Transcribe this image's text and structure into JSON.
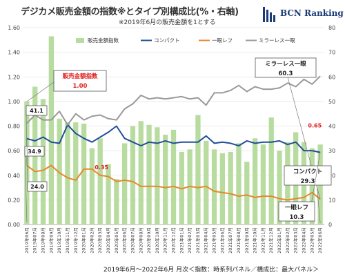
{
  "header": {
    "title": "デジカメ販売金額の指数※とタイプ別構成比(%・右軸)",
    "note": "※2019年6月の販売金額を1とする",
    "logo": "BCN Ranking"
  },
  "footer": "2019年6月～2022年6月 月次＜指数：時系列パネル／構成比：最大パネル＞",
  "colors": {
    "bar": "#b8dca0",
    "compact": "#1f4e96",
    "dslr": "#e8872b",
    "mirrorless": "#999999",
    "highlight": "#e02020"
  },
  "chart_data": {
    "type": "bar+line",
    "categories": [
      "2019年06月",
      "2019年07月",
      "2019年08月",
      "2019年09月",
      "2019年10月",
      "2019年11月",
      "2019年12月",
      "2020年01月",
      "2020年02月",
      "2020年03月",
      "2020年04月",
      "2020年05月",
      "2020年06月",
      "2020年07月",
      "2020年08月",
      "2020年09月",
      "2020年10月",
      "2020年11月",
      "2020年12月",
      "2021年01月",
      "2021年02月",
      "2021年03月",
      "2021年04月",
      "2021年05月",
      "2021年06月",
      "2021年07月",
      "2021年08月",
      "2021年09月",
      "2021年10月",
      "2021年11月",
      "2021年12月",
      "2022年01月",
      "2022年02月",
      "2022年03月",
      "2022年04月",
      "2022年05月",
      "2022年06月"
    ],
    "left_axis": {
      "ylim": [
        0,
        1.6
      ],
      "ticks": [
        "0.00",
        "0.20",
        "0.40",
        "0.60",
        "0.80",
        "1.00",
        "1.20",
        "1.40",
        "1.60"
      ]
    },
    "right_axis": {
      "ylim": [
        0,
        80
      ],
      "ticks": [
        "0",
        "10",
        "20",
        "30",
        "40",
        "50",
        "60",
        "70",
        "80"
      ]
    },
    "series": [
      {
        "name": "販売金額指数",
        "kind": "bar",
        "axis": "left",
        "values": [
          1.0,
          1.12,
          1.02,
          1.53,
          0.86,
          0.83,
          0.83,
          0.82,
          0.62,
          0.7,
          0.49,
          0.37,
          0.66,
          0.8,
          0.84,
          0.81,
          0.79,
          0.73,
          0.77,
          0.59,
          0.61,
          0.89,
          0.68,
          0.61,
          0.58,
          0.59,
          0.66,
          0.51,
          0.7,
          0.65,
          0.87,
          0.6,
          0.67,
          0.75,
          0.67,
          0.62,
          0.65
        ]
      },
      {
        "name": "コンパクト",
        "kind": "line",
        "axis": "right",
        "values": [
          34.9,
          34.0,
          35.5,
          33.5,
          33.0,
          40.5,
          37.0,
          35.0,
          33.5,
          35.5,
          37.5,
          40.0,
          35.0,
          33.5,
          32.0,
          33.5,
          33.0,
          34.0,
          33.0,
          33.5,
          33.5,
          33.5,
          36.0,
          33.0,
          33.5,
          33.0,
          32.0,
          34.0,
          33.0,
          33.5,
          33.5,
          34.0,
          32.5,
          33.5,
          30.0,
          30.0,
          29.3
        ]
      },
      {
        "name": "一眼レフ",
        "kind": "line",
        "axis": "right",
        "values": [
          24.0,
          21.5,
          22.0,
          24.0,
          21.0,
          19.0,
          18.0,
          22.5,
          22.5,
          20.0,
          19.5,
          17.5,
          18.0,
          17.5,
          15.5,
          15.5,
          15.5,
          15.0,
          15.5,
          14.5,
          15.5,
          15.0,
          15.5,
          13.5,
          13.0,
          12.5,
          11.5,
          12.0,
          11.0,
          11.5,
          11.5,
          10.5,
          10.0,
          10.5,
          11.0,
          13.0,
          10.3
        ]
      },
      {
        "name": "ミラーレス一眼",
        "kind": "line",
        "axis": "right",
        "values": [
          41.1,
          44.5,
          42.5,
          42.5,
          46.0,
          40.5,
          45.0,
          42.5,
          44.0,
          44.5,
          43.0,
          42.5,
          47.0,
          49.0,
          52.5,
          51.0,
          51.5,
          51.0,
          51.5,
          52.0,
          51.0,
          51.5,
          48.5,
          53.5,
          53.5,
          54.5,
          56.5,
          54.0,
          56.0,
          55.0,
          55.0,
          55.5,
          57.5,
          56.0,
          59.0,
          57.0,
          60.3
        ]
      }
    ],
    "annotations": {
      "index_label": "販売金額指数",
      "index_value": "1.00",
      "start_compact": "34.9",
      "start_mirrorless": "41.1",
      "start_dslr": "24.0",
      "mid_dslr": "0.35",
      "end_red": "0.65",
      "mirrorless_label": "ミラーレス一眼",
      "mirrorless_value": "60.3",
      "compact_label": "コンパクト",
      "compact_value": "29.3",
      "dslr_label": "一眼レフ",
      "dslr_value": "10.3"
    }
  }
}
